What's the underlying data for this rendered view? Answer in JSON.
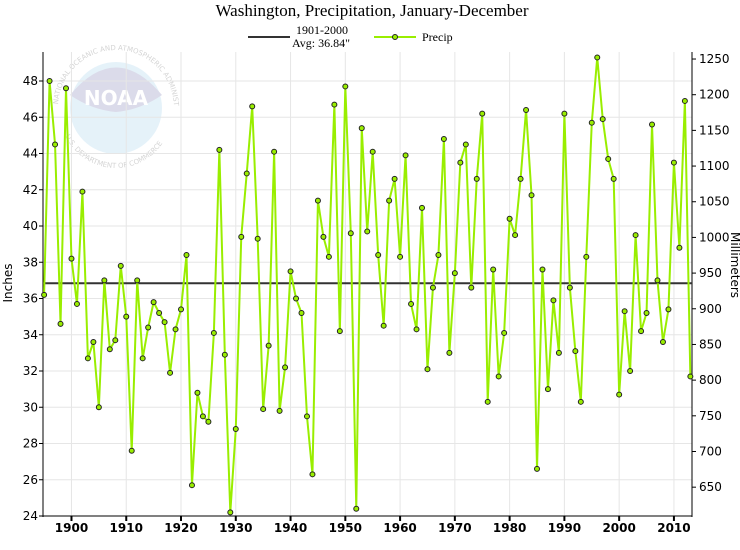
{
  "chart_data": {
    "type": "line",
    "title": "Washington, Precipitation, January-December",
    "ylabel": "Inches",
    "ylabel_right": "Millimeters",
    "xlabel": "",
    "ylim": [
      24,
      49.6
    ],
    "xlim": [
      1894.8,
      2013.3
    ],
    "yticks": [
      24,
      26,
      28,
      30,
      32,
      34,
      36,
      38,
      40,
      42,
      44,
      46,
      48
    ],
    "yticks_right": [
      650,
      700,
      750,
      800,
      850,
      900,
      950,
      1000,
      1050,
      1100,
      1150,
      1200,
      1250
    ],
    "xticks": [
      1900,
      1910,
      1920,
      1930,
      1940,
      1950,
      1960,
      1970,
      1980,
      1990,
      2000,
      2010
    ],
    "grid": true,
    "legend": {
      "placement": "top-center",
      "avg_label_line1": "1901-2000",
      "avg_label_line2": "Avg: 36.84\"",
      "series_label": "Precip"
    },
    "average": 36.84,
    "colors": {
      "series": "#99ee00",
      "average": "#333333",
      "grid": "#e6e6e6"
    },
    "watermark": {
      "text_top": "NATIONAL OCEANIC AND ATMOSPHERIC ADMINISTRATION",
      "text_bottom": "U.S. DEPARTMENT OF COMMERCE",
      "center": "NOAA"
    },
    "series": [
      {
        "name": "Precip",
        "x_start": 1895,
        "values": [
          36.2,
          48.0,
          44.5,
          34.6,
          47.6,
          38.2,
          35.7,
          41.9,
          32.7,
          33.6,
          30.0,
          37.0,
          33.2,
          33.7,
          37.8,
          35.0,
          27.6,
          37.0,
          32.7,
          34.4,
          35.8,
          35.2,
          34.7,
          31.9,
          34.3,
          35.4,
          38.4,
          25.7,
          30.8,
          29.5,
          29.2,
          34.1,
          44.2,
          32.9,
          24.2,
          28.8,
          39.4,
          42.9,
          46.6,
          39.3,
          29.9,
          33.4,
          44.1,
          29.8,
          32.2,
          37.5,
          36.0,
          35.2,
          29.5,
          26.3,
          41.4,
          39.4,
          38.3,
          46.7,
          34.2,
          47.7,
          39.6,
          24.4,
          45.4,
          39.7,
          44.1,
          38.4,
          34.5,
          41.4,
          42.6,
          38.3,
          43.9,
          35.7,
          34.3,
          41.0,
          32.1,
          36.6,
          38.4,
          44.8,
          33.0,
          37.4,
          43.5,
          44.5,
          36.6,
          42.6,
          46.2,
          30.3,
          37.6,
          31.7,
          34.1,
          40.4,
          39.5,
          42.6,
          46.4,
          41.7,
          26.6,
          37.6,
          31.0,
          35.9,
          33.0,
          46.2,
          36.6,
          33.1,
          30.3,
          38.3,
          45.7,
          49.3,
          45.9,
          43.7,
          42.6,
          30.7,
          35.3,
          32.0,
          39.5,
          34.2,
          35.2,
          45.6,
          37.0,
          33.6,
          35.4,
          43.5,
          38.8,
          46.9,
          31.7
        ]
      }
    ]
  }
}
